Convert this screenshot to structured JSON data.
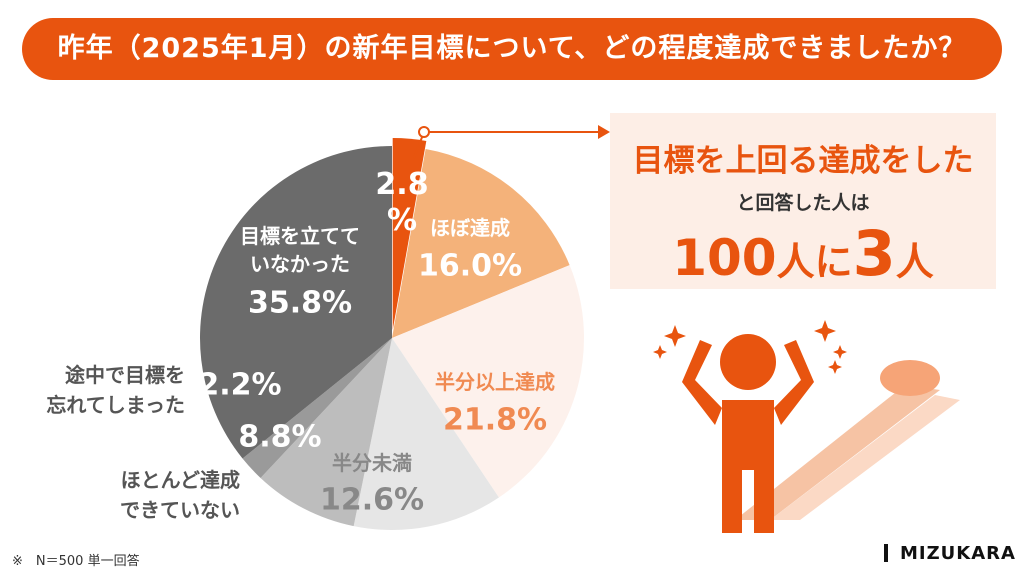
{
  "chart_data": {
    "type": "pie",
    "title": "昨年（2025年1月）の新年目標について、どの程度達成できましたか？",
    "categories": [
      null,
      "ほぼ達成",
      "半分以上達成",
      "半分未満",
      "ほとんど達成\nできていない",
      "途中で目標を\n忘れてしまった",
      "目標を立てて\nいなかった"
    ],
    "values": [
      2.8,
      16.0,
      21.8,
      12.6,
      8.8,
      2.2,
      35.8
    ],
    "value_labels": [
      "2.8\n%",
      "16.0%",
      "21.8%",
      "12.6%",
      "8.8%",
      "2.2%",
      "35.8%"
    ],
    "colors": [
      "#e8540f",
      "#f4b27a",
      "#fdf1ec",
      "#e6e6e6",
      "#bdbdbd",
      "#9a9a9a",
      "#6b6b6b"
    ]
  },
  "callout": {
    "line1": "目標を上回る達成をした",
    "line2": "と回答した人は",
    "parts": [
      "100",
      "人に",
      "3",
      "人"
    ]
  },
  "note": "※　N＝500 単一回答",
  "logo": "MIZUKARA"
}
